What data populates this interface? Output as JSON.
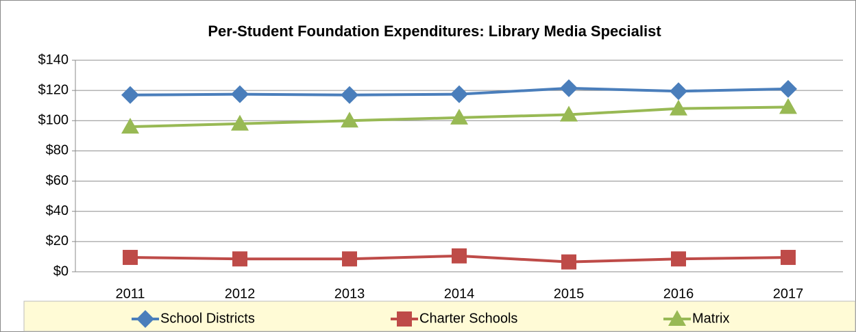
{
  "chart_data": {
    "type": "line",
    "title": "Per-Student Foundation Expenditures: Library Media Specialist",
    "categories": [
      "2011",
      "2012",
      "2013",
      "2014",
      "2015",
      "2016",
      "2017"
    ],
    "series": [
      {
        "name": "School Districts",
        "color": "#4a7ebb",
        "marker": "diamond",
        "values": [
          117,
          117.5,
          117,
          117.5,
          121.5,
          119.5,
          121
        ]
      },
      {
        "name": "Charter Schools",
        "color": "#be4b48",
        "marker": "square",
        "values": [
          9.5,
          8.5,
          8.5,
          10.5,
          6.5,
          8.5,
          9.5
        ]
      },
      {
        "name": "Matrix",
        "color": "#98b954",
        "marker": "triangle",
        "values": [
          96,
          98,
          100,
          102,
          104,
          108,
          109
        ]
      }
    ],
    "ylim": [
      0,
      140
    ],
    "yticks": [
      {
        "value": 0,
        "label": "$0"
      },
      {
        "value": 20,
        "label": "$20"
      },
      {
        "value": 40,
        "label": "$40"
      },
      {
        "value": 60,
        "label": "$60"
      },
      {
        "value": 80,
        "label": "$80"
      },
      {
        "value": 100,
        "label": "$100"
      },
      {
        "value": 120,
        "label": "$120"
      },
      {
        "value": 140,
        "label": "$140"
      }
    ],
    "grid": true,
    "legend": "bottom"
  }
}
